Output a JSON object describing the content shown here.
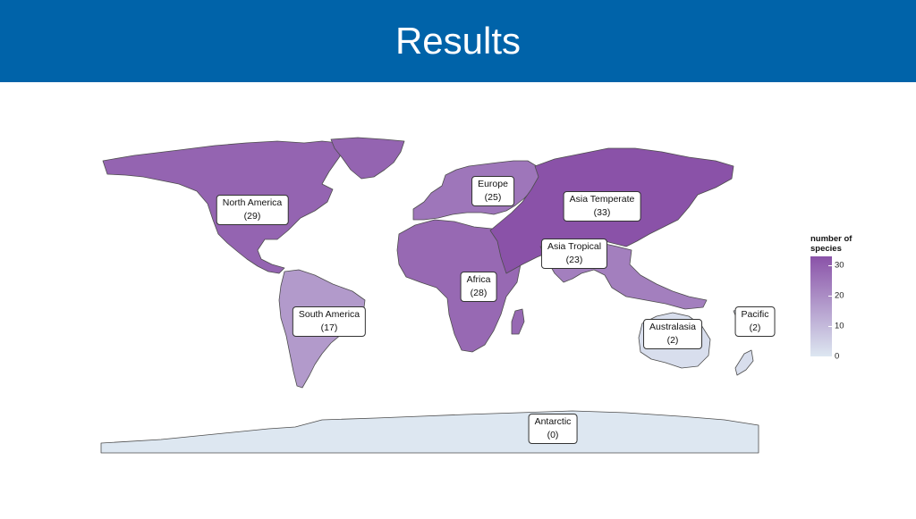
{
  "header": {
    "title": "Results"
  },
  "map": {
    "regions": [
      {
        "id": "north-america",
        "name": "North America",
        "value": 29,
        "display": "(29)"
      },
      {
        "id": "south-america",
        "name": "South America",
        "value": 17,
        "display": "(17)"
      },
      {
        "id": "europe",
        "name": "Europe",
        "value": 25,
        "display": "(25)"
      },
      {
        "id": "africa",
        "name": "Africa",
        "value": 28,
        "display": "(28)"
      },
      {
        "id": "asia-temperate",
        "name": "Asia Temperate",
        "value": 33,
        "display": "(33)"
      },
      {
        "id": "asia-tropical",
        "name": "Asia Tropical",
        "value": 23,
        "display": "(23)"
      },
      {
        "id": "australasia",
        "name": "Australasia",
        "value": 2,
        "display": "(2)"
      },
      {
        "id": "pacific",
        "name": "Pacific",
        "value": 2,
        "display": "(2)"
      },
      {
        "id": "antarctic",
        "name": "Antarctic",
        "value": 0,
        "display": "(0)"
      }
    ],
    "legend": {
      "title_line1": "number of",
      "title_line2": "species",
      "ticks": [
        "30",
        "20",
        "10",
        "0"
      ],
      "range": [
        0,
        33
      ],
      "color_low": "#dde7f1",
      "color_high": "#8a52a8"
    }
  }
}
